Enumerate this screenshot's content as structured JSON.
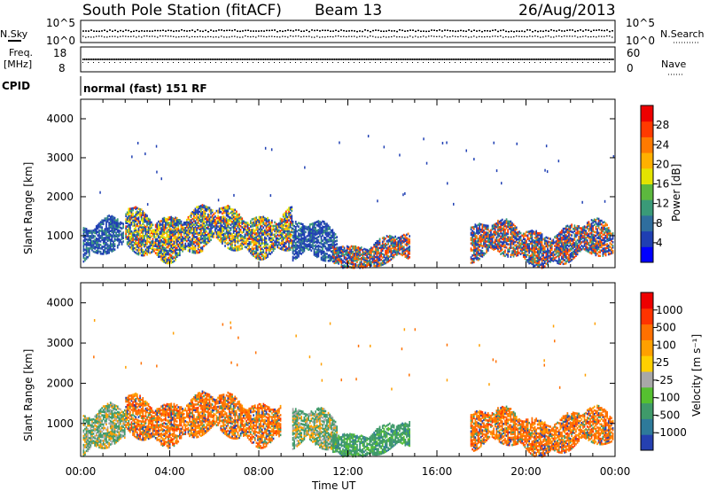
{
  "header": {
    "station": "South Pole Station (fitACF)",
    "beam": "Beam 13",
    "date": "26/Aug/2013"
  },
  "status_panel": {
    "nsky_label": "N.Sky",
    "nsky_ticks": [
      "10^5",
      "10^0"
    ],
    "nsearch_label": "N.Search",
    "nsearch_ticks": [
      "10^5",
      "10^0"
    ],
    "freq_label_1": "Freq.",
    "freq_label_2": "[MHz]",
    "freq_ticks": [
      "18",
      "8"
    ],
    "nave_label": "Nave",
    "nave_ticks": [
      "60",
      "0"
    ],
    "cpid_label": "CPID",
    "cpid_value": "normal (fast) 151 RF"
  },
  "chart_data": [
    {
      "type": "heatmap",
      "title": "",
      "xlabel": "",
      "ylabel": "Slant Range [km]",
      "y_ticks": [
        "1000",
        "2000",
        "3000",
        "4000"
      ],
      "ylim": [
        180,
        4500
      ],
      "xlim": [
        "00:00",
        "24:00"
      ],
      "colorbar": {
        "label": "Power [dB]",
        "ticks": [
          "28",
          "24",
          "20",
          "16",
          "12",
          "8",
          "4"
        ],
        "colors": [
          "#0000ff",
          "#1f3fb3",
          "#2f6e9e",
          "#3a9a78",
          "#5cb83e",
          "#e3e300",
          "#ffb000",
          "#ff7a00",
          "#ff3a00",
          "#ee0000"
        ]
      },
      "scatter_regions": [
        {
          "start_hour": 0.1,
          "end_hour": 1.9,
          "range_low": 450,
          "range_high": 1400,
          "dominant_level": "low"
        },
        {
          "start_hour": 2.0,
          "end_hour": 5.5,
          "range_low": 500,
          "range_high": 1700,
          "dominant_level": "high"
        },
        {
          "start_hour": 5.5,
          "end_hour": 9.5,
          "range_low": 600,
          "range_high": 1700,
          "dominant_level": "high"
        },
        {
          "start_hour": 9.5,
          "end_hour": 11.5,
          "range_low": 300,
          "range_high": 1300,
          "dominant_level": "low"
        },
        {
          "start_hour": 11.3,
          "end_hour": 14.8,
          "range_low": 250,
          "range_high": 950,
          "dominant_level": "mid"
        },
        {
          "start_hour": 17.5,
          "end_hour": 23.9,
          "range_low": 350,
          "range_high": 1300,
          "dominant_level": "mid"
        }
      ]
    },
    {
      "type": "heatmap",
      "title": "",
      "xlabel": "Time UT",
      "ylabel": "Slant Range [km]",
      "x_ticks": [
        "00:00",
        "04:00",
        "08:00",
        "12:00",
        "16:00",
        "20:00",
        "00:00"
      ],
      "y_ticks": [
        "1000",
        "2000",
        "3000",
        "4000"
      ],
      "ylim": [
        180,
        4500
      ],
      "xlim": [
        "00:00",
        "24:00"
      ],
      "colorbar": {
        "label": "Velocity [m s⁻¹]",
        "ticks": [
          "1000",
          "500",
          "100",
          "25",
          "-25",
          "-100",
          "-500",
          "-1000"
        ],
        "colors": [
          "#2540b0",
          "#2e7a9a",
          "#3f9a6a",
          "#55c030",
          "#a8a8a8",
          "#ffd000",
          "#ffa000",
          "#ff7000",
          "#ff3300",
          "#ee0000"
        ]
      },
      "scatter_regions": [
        {
          "start_hour": 0.1,
          "end_hour": 2.0,
          "range_low": 300,
          "range_high": 1400,
          "dominant_level": "slow"
        },
        {
          "start_hour": 2.0,
          "end_hour": 9.0,
          "range_low": 600,
          "range_high": 1700,
          "dominant_level": "away"
        },
        {
          "start_hour": 9.5,
          "end_hour": 11.5,
          "range_low": 300,
          "range_high": 1300,
          "dominant_level": "slow"
        },
        {
          "start_hour": 11.3,
          "end_hour": 14.8,
          "range_low": 250,
          "range_high": 950,
          "dominant_level": "toward"
        },
        {
          "start_hour": 17.5,
          "end_hour": 23.9,
          "range_low": 350,
          "range_high": 1300,
          "dominant_level": "away"
        }
      ]
    }
  ]
}
